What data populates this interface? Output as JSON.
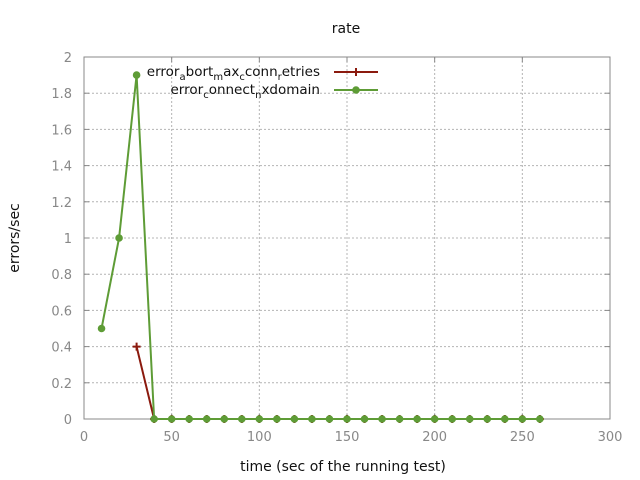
{
  "chart_data": {
    "type": "line",
    "title": "rate",
    "xlabel": "time (sec of the running test)",
    "ylabel": "errors/sec",
    "xlim": [
      0,
      300
    ],
    "ylim": [
      0,
      2
    ],
    "xticks": [
      0,
      50,
      100,
      150,
      200,
      250,
      300
    ],
    "yticks": [
      0,
      0.2,
      0.4,
      0.6,
      0.8,
      1,
      1.2,
      1.4,
      1.6,
      1.8,
      2
    ],
    "grid": true,
    "legend_position": "top-center",
    "series": [
      {
        "name": "error_abort_max_conn_retries",
        "legend_parts": [
          {
            "t": "error",
            "sub": false
          },
          {
            "t": "a",
            "sub": true
          },
          {
            "t": "bort",
            "sub": false
          },
          {
            "t": "m",
            "sub": true
          },
          {
            "t": "ax",
            "sub": false
          },
          {
            "t": "c",
            "sub": true
          },
          {
            "t": "conn",
            "sub": false
          },
          {
            "t": "r",
            "sub": true
          },
          {
            "t": "etries",
            "sub": false
          }
        ],
        "color": "#8b1a0e",
        "marker": "plus",
        "x": [
          30,
          40,
          50,
          60,
          70,
          80,
          90,
          100,
          110,
          120,
          130,
          140,
          150,
          160,
          170,
          180,
          190,
          200,
          210,
          220,
          230,
          240,
          250,
          260
        ],
        "y": [
          0.4,
          0,
          0,
          0,
          0,
          0,
          0,
          0,
          0,
          0,
          0,
          0,
          0,
          0,
          0,
          0,
          0,
          0,
          0,
          0,
          0,
          0,
          0,
          0
        ]
      },
      {
        "name": "error_connect_nxdomain",
        "legend_parts": [
          {
            "t": "error",
            "sub": false
          },
          {
            "t": "c",
            "sub": true
          },
          {
            "t": "onnect",
            "sub": false
          },
          {
            "t": "n",
            "sub": true
          },
          {
            "t": "xdomain",
            "sub": false
          }
        ],
        "color": "#5e9c36",
        "marker": "circle",
        "x": [
          10,
          20,
          30,
          40,
          50,
          60,
          70,
          80,
          90,
          100,
          110,
          120,
          130,
          140,
          150,
          160,
          170,
          180,
          190,
          200,
          210,
          220,
          230,
          240,
          250,
          260
        ],
        "y": [
          0.5,
          1,
          1.9,
          0,
          0,
          0,
          0,
          0,
          0,
          0,
          0,
          0,
          0,
          0,
          0,
          0,
          0,
          0,
          0,
          0,
          0,
          0,
          0,
          0,
          0,
          0
        ]
      }
    ]
  }
}
